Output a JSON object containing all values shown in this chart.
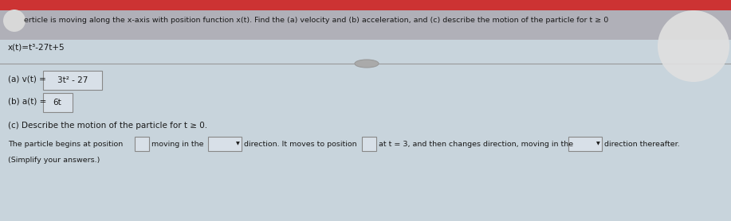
{
  "bg_top": "#c8c8c8",
  "bg_main": "#c8d4dc",
  "text_color": "#1a1a1a",
  "box_fill": "#d8e0e8",
  "box_border": "#888888",
  "header_text": "erticle is moving along the x-axis with position function x(t). Find the (a) velocity and (b) acceleration, and (c) describe the motion of the particle for t ≥ 0",
  "position_func": "x(t)=t³-27t+5",
  "line_a_label": "(a) v(t) = ",
  "line_a_answer": "3t² - 27",
  "line_b_label": "(b) a(t) = ",
  "line_b_answer": "6t",
  "line_c_label": "(c) Describe the motion of the particle for t ≥ 0.",
  "simplify": "(Simplify your answers.)",
  "separator_color": "#999999",
  "circle_color": "#e8e8e8",
  "red_bar": "#cc3333",
  "header_bg": "#b0b0b8"
}
